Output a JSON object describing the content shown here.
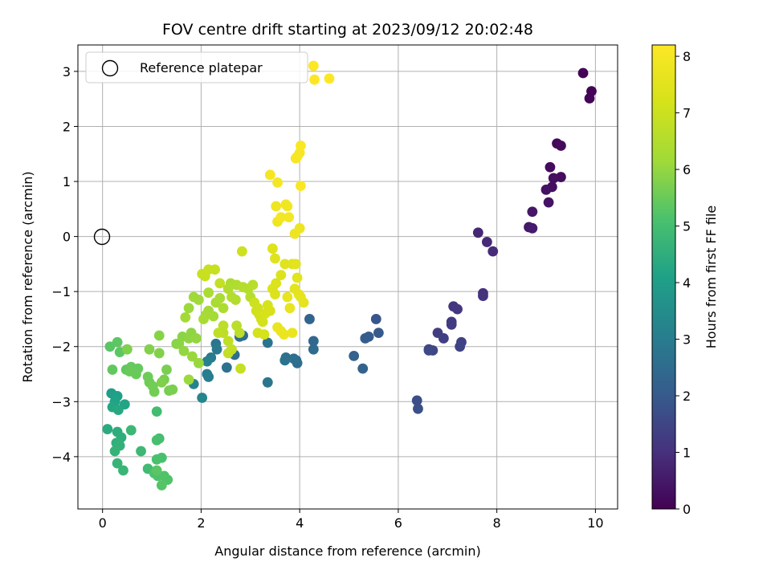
{
  "chart_data": {
    "type": "scatter",
    "title": "FOV centre drift starting at 2023/09/12 20:02:48",
    "xlabel": "Angular distance from reference (arcmin)",
    "ylabel": "Rotation from reference (arcmin)",
    "xlim": [
      -0.5,
      10.45
    ],
    "ylim": [
      -4.95,
      3.48
    ],
    "xticks": [
      0,
      2,
      4,
      6,
      8,
      10
    ],
    "yticks": [
      -4,
      -3,
      -2,
      -1,
      0,
      1,
      2,
      3
    ],
    "grid": true,
    "legend": {
      "entries": [
        {
          "label": "Reference platepar",
          "marker": "open-circle"
        }
      ],
      "placement": "top-left"
    },
    "reference_point": {
      "x": 0,
      "y": 0
    },
    "colorbar": {
      "label": "Hours from first FF file",
      "range": [
        0,
        8.2
      ],
      "ticks": [
        0,
        1,
        2,
        3,
        4,
        5,
        6,
        7,
        8
      ],
      "colormap": "viridis"
    },
    "points": [
      [
        9.75,
        2.97,
        0.05
      ],
      [
        9.92,
        2.64,
        0.06
      ],
      [
        9.88,
        2.51,
        0.07
      ],
      [
        9.22,
        1.69,
        0.15
      ],
      [
        9.3,
        1.65,
        0.18
      ],
      [
        9.08,
        1.26,
        0.22
      ],
      [
        9.3,
        1.08,
        0.25
      ],
      [
        9.15,
        1.06,
        0.28
      ],
      [
        9.12,
        0.9,
        0.3
      ],
      [
        9.0,
        0.85,
        0.33
      ],
      [
        9.05,
        0.62,
        0.37
      ],
      [
        8.72,
        0.45,
        0.45
      ],
      [
        8.65,
        0.17,
        0.5
      ],
      [
        8.72,
        0.15,
        0.55
      ],
      [
        7.62,
        0.07,
        0.8
      ],
      [
        7.8,
        -0.1,
        0.85
      ],
      [
        7.92,
        -0.27,
        0.9
      ],
      [
        7.72,
        -1.03,
        1.0
      ],
      [
        7.72,
        -1.08,
        1.05
      ],
      [
        7.12,
        -1.27,
        1.1
      ],
      [
        7.2,
        -1.32,
        1.15
      ],
      [
        7.08,
        -1.55,
        1.2
      ],
      [
        7.08,
        -1.6,
        1.25
      ],
      [
        6.8,
        -1.75,
        1.3
      ],
      [
        6.92,
        -1.85,
        1.35
      ],
      [
        7.28,
        -1.92,
        1.4
      ],
      [
        7.25,
        -2.0,
        1.45
      ],
      [
        6.62,
        -2.05,
        1.5
      ],
      [
        6.7,
        -2.07,
        1.55
      ],
      [
        6.62,
        -2.07,
        1.6
      ],
      [
        6.38,
        -2.98,
        1.7
      ],
      [
        6.4,
        -3.13,
        1.75
      ],
      [
        5.55,
        -1.5,
        1.9
      ],
      [
        5.6,
        -1.75,
        2.0
      ],
      [
        5.4,
        -1.82,
        2.05
      ],
      [
        5.33,
        -1.85,
        2.1
      ],
      [
        5.1,
        -2.17,
        2.2
      ],
      [
        5.28,
        -2.4,
        2.25
      ],
      [
        4.2,
        -1.5,
        2.3
      ],
      [
        4.28,
        -1.9,
        2.4
      ],
      [
        4.28,
        -2.05,
        2.45
      ],
      [
        3.93,
        -2.25,
        2.5
      ],
      [
        3.95,
        -2.3,
        2.55
      ],
      [
        3.88,
        -2.22,
        2.6
      ],
      [
        3.72,
        -2.2,
        2.65
      ],
      [
        3.7,
        -2.25,
        2.7
      ],
      [
        3.35,
        -1.93,
        2.75
      ],
      [
        3.35,
        -2.65,
        2.8
      ],
      [
        2.85,
        -1.8,
        2.5
      ],
      [
        2.78,
        -1.82,
        2.55
      ],
      [
        2.68,
        -2.15,
        2.6
      ],
      [
        2.52,
        -2.38,
        2.7
      ],
      [
        2.3,
        -1.95,
        2.8
      ],
      [
        2.32,
        -2.05,
        2.9
      ],
      [
        2.2,
        -2.2,
        2.95
      ],
      [
        2.12,
        -2.5,
        3.0
      ],
      [
        2.15,
        -2.55,
        3.05
      ],
      [
        2.12,
        -2.27,
        3.1
      ],
      [
        1.85,
        -2.68,
        3.2
      ],
      [
        2.02,
        -2.93,
        3.3
      ],
      [
        0.18,
        -2.85,
        4.0
      ],
      [
        0.3,
        -2.9,
        4.1
      ],
      [
        0.25,
        -3.0,
        4.15
      ],
      [
        0.45,
        -3.05,
        4.2
      ],
      [
        0.2,
        -3.1,
        4.25
      ],
      [
        0.32,
        -3.15,
        4.3
      ],
      [
        0.1,
        -3.5,
        4.4
      ],
      [
        0.3,
        -3.55,
        4.45
      ],
      [
        0.38,
        -3.65,
        4.5
      ],
      [
        0.28,
        -3.75,
        4.55
      ],
      [
        0.35,
        -3.8,
        4.6
      ],
      [
        0.25,
        -3.9,
        4.65
      ],
      [
        0.3,
        -4.12,
        4.7
      ],
      [
        0.42,
        -4.25,
        4.75
      ],
      [
        0.58,
        -3.52,
        4.8
      ],
      [
        0.78,
        -3.9,
        4.85
      ],
      [
        0.92,
        -4.22,
        4.9
      ],
      [
        1.1,
        -3.18,
        4.95
      ],
      [
        1.15,
        -3.67,
        5.0
      ],
      [
        1.1,
        -3.7,
        5.05
      ],
      [
        1.1,
        -4.05,
        5.1
      ],
      [
        1.2,
        -4.02,
        5.1
      ],
      [
        1.05,
        -4.3,
        5.15
      ],
      [
        1.12,
        -4.35,
        5.15
      ],
      [
        1.25,
        -4.35,
        5.2
      ],
      [
        1.32,
        -4.42,
        5.2
      ],
      [
        1.2,
        -4.52,
        5.25
      ],
      [
        1.1,
        -4.25,
        5.3
      ],
      [
        0.15,
        -2.0,
        5.3
      ],
      [
        0.3,
        -1.92,
        5.35
      ],
      [
        0.35,
        -2.1,
        5.35
      ],
      [
        0.2,
        -2.42,
        5.4
      ],
      [
        0.48,
        -2.42,
        5.4
      ],
      [
        0.58,
        -2.37,
        5.45
      ],
      [
        0.72,
        -2.4,
        5.45
      ],
      [
        0.68,
        -2.5,
        5.5
      ],
      [
        0.55,
        -2.45,
        5.5
      ],
      [
        0.92,
        -2.55,
        5.55
      ],
      [
        0.95,
        -2.65,
        5.55
      ],
      [
        1.02,
        -2.72,
        5.6
      ],
      [
        1.05,
        -2.82,
        5.6
      ],
      [
        1.25,
        -2.6,
        5.65
      ],
      [
        1.35,
        -2.8,
        5.65
      ],
      [
        1.42,
        -2.78,
        5.7
      ],
      [
        1.3,
        -2.42,
        5.7
      ],
      [
        1.2,
        -2.65,
        5.75
      ],
      [
        0.5,
        -2.05,
        5.75
      ],
      [
        0.95,
        -2.05,
        5.8
      ],
      [
        1.15,
        -2.12,
        5.8
      ],
      [
        1.15,
        -1.8,
        5.85
      ],
      [
        1.5,
        -1.95,
        5.85
      ],
      [
        1.62,
        -1.82,
        5.9
      ],
      [
        1.55,
        -1.95,
        5.9
      ],
      [
        1.8,
        -1.75,
        5.95
      ],
      [
        1.75,
        -1.85,
        5.95
      ],
      [
        1.9,
        -1.85,
        6.0
      ],
      [
        1.65,
        -2.08,
        6.0
      ],
      [
        1.82,
        -2.18,
        6.05
      ],
      [
        1.95,
        -2.3,
        6.05
      ],
      [
        1.75,
        -2.6,
        6.1
      ],
      [
        1.75,
        -1.3,
        6.1
      ],
      [
        1.85,
        -1.1,
        6.15
      ],
      [
        1.95,
        -1.15,
        6.15
      ],
      [
        1.68,
        -1.47,
        6.2
      ],
      [
        2.15,
        -1.35,
        6.2
      ],
      [
        2.1,
        -1.42,
        6.25
      ],
      [
        2.25,
        -1.45,
        6.25
      ],
      [
        2.05,
        -1.5,
        6.3
      ],
      [
        2.3,
        -1.2,
        6.3
      ],
      [
        2.15,
        -1.02,
        6.35
      ],
      [
        2.38,
        -1.12,
        6.35
      ],
      [
        2.45,
        -1.3,
        6.4
      ],
      [
        2.6,
        -0.85,
        6.4
      ],
      [
        2.55,
        -0.95,
        6.45
      ],
      [
        2.72,
        -0.88,
        6.45
      ],
      [
        2.62,
        -1.1,
        6.5
      ],
      [
        2.7,
        -1.15,
        6.5
      ],
      [
        2.85,
        -0.92,
        6.55
      ],
      [
        2.95,
        -0.95,
        6.55
      ],
      [
        3.05,
        -0.88,
        6.6
      ],
      [
        3.0,
        -1.1,
        6.6
      ],
      [
        2.72,
        -1.62,
        6.65
      ],
      [
        2.78,
        -1.75,
        6.65
      ],
      [
        2.45,
        -1.62,
        6.7
      ],
      [
        2.45,
        -1.75,
        6.7
      ],
      [
        2.35,
        -1.75,
        6.75
      ],
      [
        2.55,
        -1.9,
        6.75
      ],
      [
        2.62,
        -2.05,
        6.8
      ],
      [
        2.55,
        -2.12,
        6.8
      ],
      [
        2.8,
        -2.4,
        6.85
      ],
      [
        2.38,
        -0.85,
        6.85
      ],
      [
        2.28,
        -0.6,
        6.9
      ],
      [
        2.15,
        -0.6,
        6.9
      ],
      [
        2.02,
        -0.68,
        6.95
      ],
      [
        2.08,
        -0.72,
        6.95
      ],
      [
        2.83,
        -0.27,
        7.0
      ],
      [
        3.08,
        -1.2,
        7.0
      ],
      [
        3.15,
        -1.3,
        7.05
      ],
      [
        3.12,
        -1.35,
        7.05
      ],
      [
        3.18,
        -1.42,
        7.1
      ],
      [
        3.22,
        -1.5,
        7.1
      ],
      [
        3.25,
        -1.55,
        7.15
      ],
      [
        3.15,
        -1.75,
        7.15
      ],
      [
        3.28,
        -1.78,
        7.2
      ],
      [
        3.35,
        -1.25,
        7.2
      ],
      [
        3.4,
        -1.35,
        7.25
      ],
      [
        3.3,
        -1.4,
        7.25
      ],
      [
        3.45,
        -0.95,
        7.3
      ],
      [
        3.52,
        -0.85,
        7.3
      ],
      [
        3.5,
        -1.05,
        7.35
      ],
      [
        3.62,
        -0.7,
        7.35
      ],
      [
        3.45,
        -0.22,
        7.4
      ],
      [
        3.5,
        -0.4,
        7.4
      ],
      [
        3.7,
        -0.5,
        7.45
      ],
      [
        3.85,
        -0.5,
        7.45
      ],
      [
        3.92,
        -0.5,
        7.5
      ],
      [
        3.95,
        -0.75,
        7.5
      ],
      [
        3.9,
        -0.95,
        7.55
      ],
      [
        3.98,
        -1.05,
        7.55
      ],
      [
        4.02,
        -1.1,
        7.6
      ],
      [
        4.08,
        -1.2,
        7.6
      ],
      [
        3.75,
        -1.1,
        7.65
      ],
      [
        3.8,
        -1.3,
        7.65
      ],
      [
        3.55,
        -1.65,
        7.7
      ],
      [
        3.62,
        -1.72,
        7.7
      ],
      [
        3.68,
        -1.78,
        7.75
      ],
      [
        3.85,
        -1.75,
        7.75
      ],
      [
        3.9,
        0.05,
        7.8
      ],
      [
        4.0,
        0.15,
        7.8
      ],
      [
        3.55,
        0.27,
        7.85
      ],
      [
        3.52,
        0.55,
        7.85
      ],
      [
        3.72,
        0.58,
        7.9
      ],
      [
        3.75,
        0.55,
        7.9
      ],
      [
        3.62,
        0.35,
        7.95
      ],
      [
        3.78,
        0.35,
        7.95
      ],
      [
        3.4,
        1.12,
        8.0
      ],
      [
        3.55,
        0.98,
        8.0
      ],
      [
        3.95,
        1.45,
        8.05
      ],
      [
        3.92,
        1.42,
        8.05
      ],
      [
        4.0,
        1.52,
        8.05
      ],
      [
        4.02,
        1.65,
        8.1
      ],
      [
        4.02,
        0.92,
        8.1
      ],
      [
        4.28,
        3.1,
        8.15
      ],
      [
        4.3,
        2.85,
        8.2
      ],
      [
        4.6,
        2.87,
        8.2
      ]
    ]
  }
}
